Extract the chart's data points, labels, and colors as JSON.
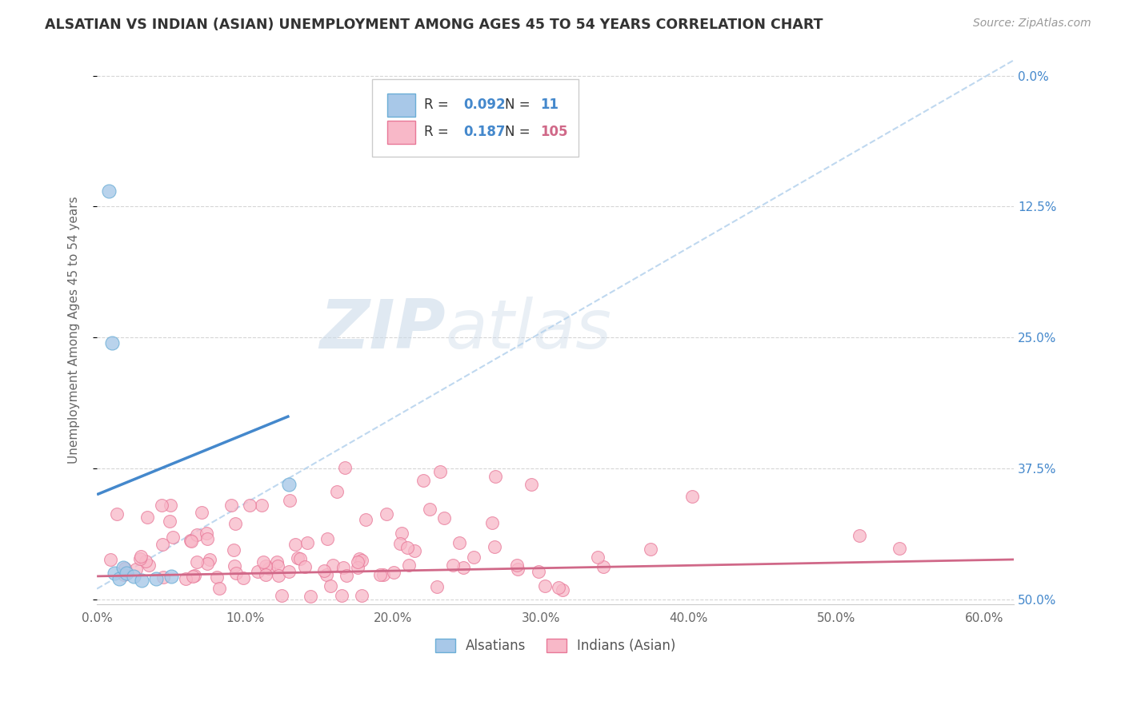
{
  "title": "ALSATIAN VS INDIAN (ASIAN) UNEMPLOYMENT AMONG AGES 45 TO 54 YEARS CORRELATION CHART",
  "source": "Source: ZipAtlas.com",
  "ylabel": "Unemployment Among Ages 45 to 54 years",
  "xlim": [
    0.0,
    0.62
  ],
  "ylim": [
    -0.005,
    0.52
  ],
  "alsatian_color": "#a8c8e8",
  "alsatian_edge_color": "#6baed6",
  "alsatian_line_color": "#4488cc",
  "indian_color": "#f8b8c8",
  "indian_edge_color": "#e87898",
  "indian_line_color": "#d06888",
  "dash_line_color": "#b8d4ee",
  "watermark_zip": "ZIP",
  "watermark_atlas": "atlas",
  "background_color": "#ffffff",
  "grid_color": "#cccccc",
  "legend_R_als": "0.092",
  "legend_N_als": "11",
  "legend_R_ind": "0.187",
  "legend_N_ind": "105"
}
